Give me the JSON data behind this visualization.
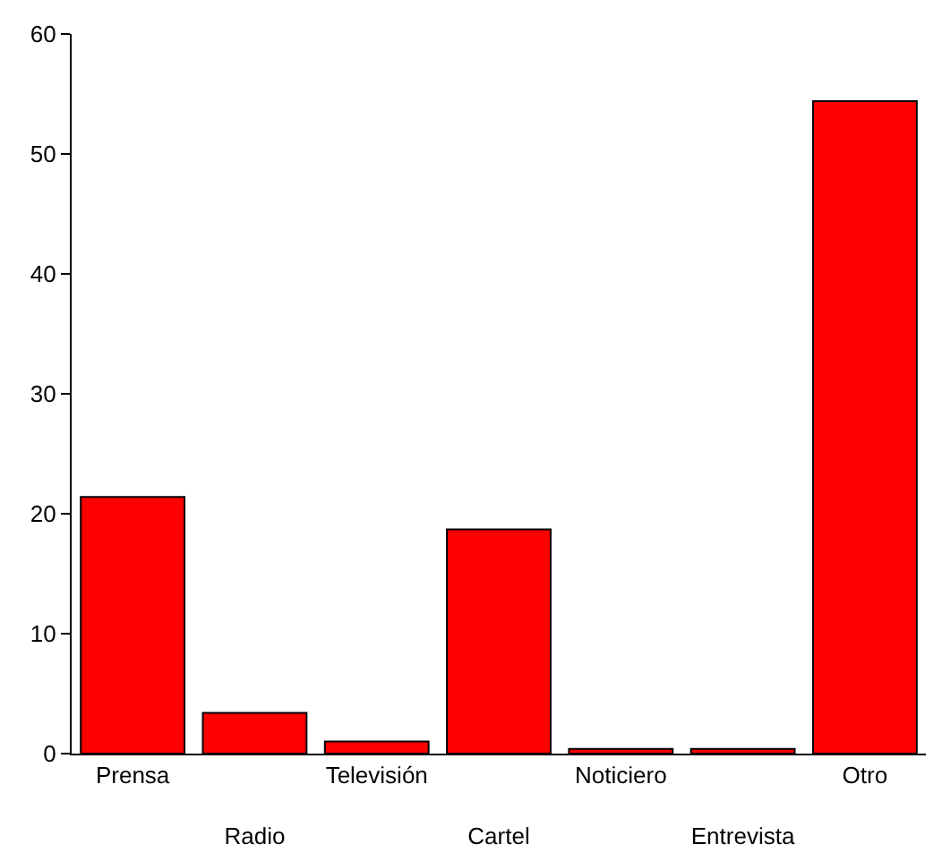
{
  "chart_data": {
    "type": "bar",
    "categories": [
      "Prensa",
      "Radio",
      "Televisión",
      "Cartel",
      "Noticiero",
      "Entrevista",
      "Otro"
    ],
    "values": [
      21.4,
      3.4,
      1.0,
      18.7,
      0.4,
      0.4,
      54.4
    ],
    "color": "#ff0000",
    "ylim": [
      0,
      60
    ],
    "yticks": [
      0,
      10,
      20,
      30,
      40,
      50,
      60
    ]
  }
}
